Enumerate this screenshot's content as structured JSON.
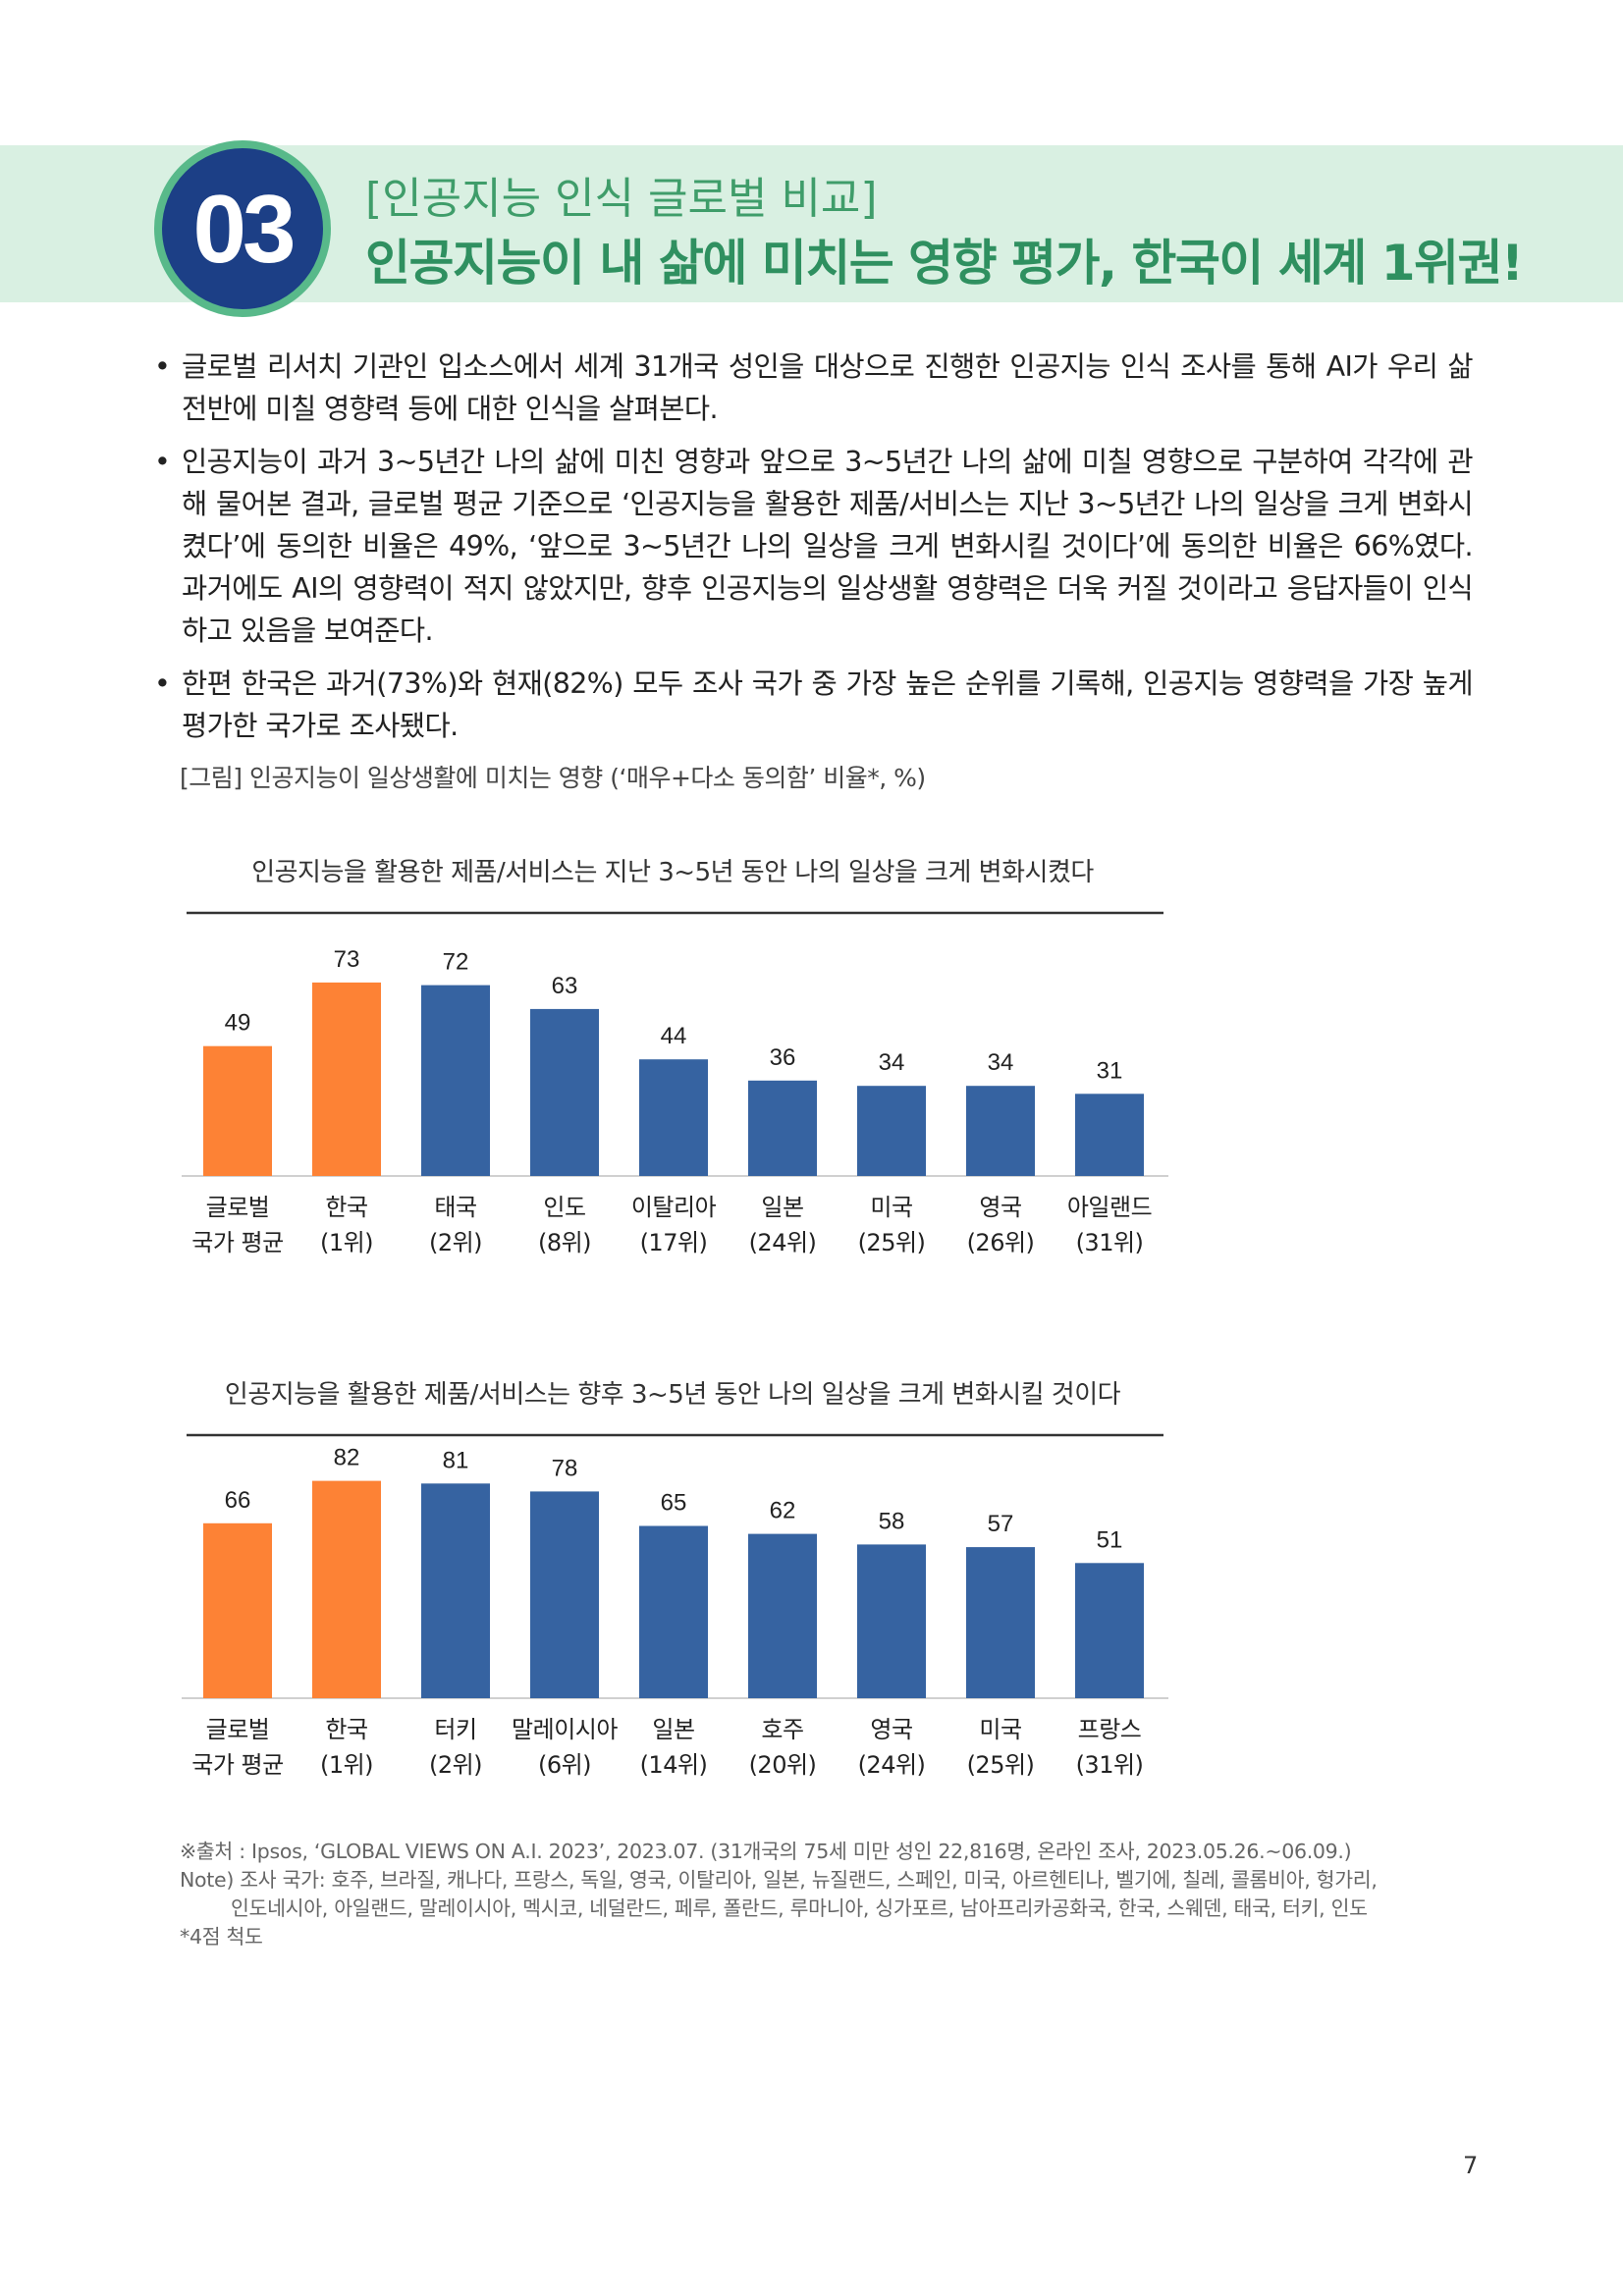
{
  "section": {
    "number": "03",
    "subtitle": "[인공지능 인식 글로벌 비교]",
    "title": "인공지능이 내 삶에 미치는 영향 평가, 한국이 세계 1위권!"
  },
  "bullets": [
    "글로벌 리서치 기관인 입소스에서 세계 31개국 성인을 대상으로 진행한 인공지능 인식 조사를 통해 AI가 우리 삶 전반에 미칠 영향력 등에 대한 인식을 살펴본다.",
    "인공지능이 과거 3~5년간 나의 삶에 미친 영향과 앞으로 3~5년간 나의 삶에 미칠 영향으로 구분하여 각각에 관해 물어본 결과, 글로벌 평균 기준으로 ‘인공지능을 활용한 제품/서비스는 지난 3~5년간 나의 일상을 크게 변화시켰다’에 동의한 비율은 49%, ‘앞으로 3~5년간 나의 일상을 크게 변화시킬 것이다’에 동의한 비율은 66%였다. 과거에도 AI의 영향력이 적지 않았지만, 향후 인공지능의 일상생활 영향력은 더욱 커질 것이라고 응답자들이 인식하고 있음을 보여준다.",
    "한편 한국은 과거(73%)와 현재(82%) 모두 조사 국가 중 가장 높은 순위를 기록해, 인공지능 영향력을 가장 높게 평가한 국가로 조사됐다."
  ],
  "figure_caption": "[그림] 인공지능이 일상생활에 미치는 영향 (‘매우+다소 동의함’ 비율*, %)",
  "colors": {
    "highlight": "#fd8235",
    "bar": "#3663a1",
    "axis": "#d0d0d0",
    "title_rule": "#333333"
  },
  "chart_data": [
    {
      "type": "bar",
      "title": "인공지능을 활용한 제품/서비스는 지난 3~5년 동안 나의 일상을 크게 변화시켰다",
      "categories": [
        [
          "글로벌",
          "국가 평균"
        ],
        [
          "한국",
          "(1위)"
        ],
        [
          "태국",
          "(2위)"
        ],
        [
          "인도",
          "(8위)"
        ],
        [
          "이탈리아",
          "(17위)"
        ],
        [
          "일본",
          "(24위)"
        ],
        [
          "미국",
          "(25위)"
        ],
        [
          "영국",
          "(26위)"
        ],
        [
          "아일랜드",
          "(31위)"
        ]
      ],
      "values": [
        49,
        73,
        72,
        63,
        44,
        36,
        34,
        34,
        31
      ],
      "highlight": [
        true,
        true,
        false,
        false,
        false,
        false,
        false,
        false,
        false
      ],
      "ylim": [
        0,
        100
      ],
      "grid": false
    },
    {
      "type": "bar",
      "title": "인공지능을 활용한 제품/서비스는 향후 3~5년 동안 나의 일상을 크게 변화시킬 것이다",
      "categories": [
        [
          "글로벌",
          "국가 평균"
        ],
        [
          "한국",
          "(1위)"
        ],
        [
          "터키",
          "(2위)"
        ],
        [
          "말레이시아",
          "(6위)"
        ],
        [
          "일본",
          "(14위)"
        ],
        [
          "호주",
          "(20위)"
        ],
        [
          "영국",
          "(24위)"
        ],
        [
          "미국",
          "(25위)"
        ],
        [
          "프랑스",
          "(31위)"
        ]
      ],
      "values": [
        66,
        82,
        81,
        78,
        65,
        62,
        58,
        57,
        51
      ],
      "highlight": [
        true,
        true,
        false,
        false,
        false,
        false,
        false,
        false,
        false
      ],
      "ylim": [
        0,
        100
      ],
      "grid": false
    }
  ],
  "source": [
    "※출처 : Ipsos, ‘GLOBAL VIEWS ON A.I. 2023’, 2023.07. (31개국의 75세 미만 성인 22,816명, 온라인 조사, 2023.05.26.~06.09.)",
    "Note) 조사 국가: 호주, 브라질, 캐나다, 프랑스, 독일, 영국, 이탈리아, 일본, 뉴질랜드, 스페인, 미국, 아르헨티나, 벨기에, 칠레, 콜롬비아, 헝가리,",
    "인도네시아, 아일랜드, 말레이시아, 멕시코, 네덜란드, 페루, 폴란드, 루마니아, 싱가포르, 남아프리카공화국, 한국, 스웨덴, 태국, 터키, 인도",
    "*4점 척도"
  ],
  "page_number": "7"
}
